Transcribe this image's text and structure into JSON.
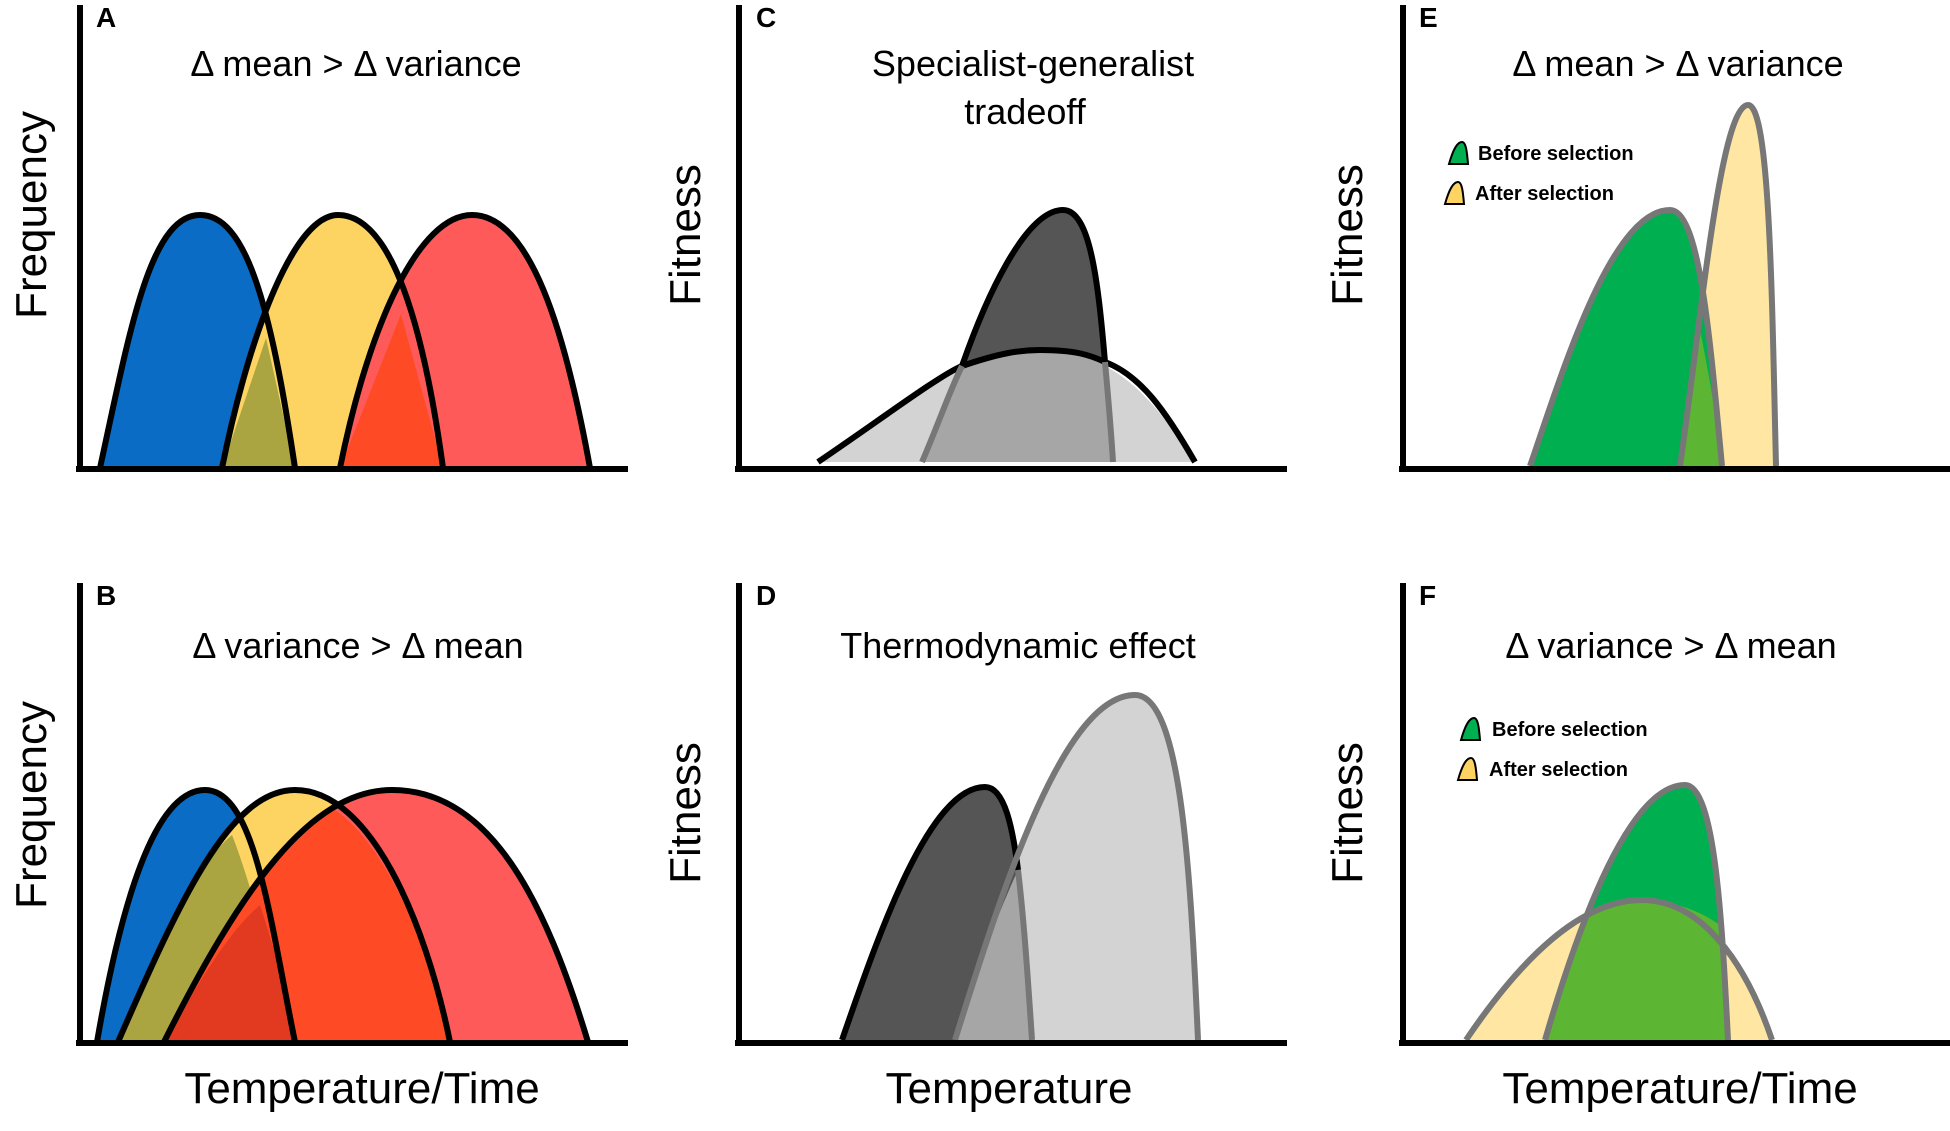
{
  "panels": {
    "A": {
      "letter": "A",
      "title": "Δ mean > Δ variance",
      "ylabel": "Frequency"
    },
    "B": {
      "letter": "B",
      "title": "Δ variance > Δ mean",
      "ylabel": "Frequency"
    },
    "C": {
      "letter": "C",
      "title_line1": "Specialist-generalist",
      "title_line2": "tradeoff",
      "ylabel": "Fitness"
    },
    "D": {
      "letter": "D",
      "title": "Thermodynamic effect",
      "ylabel": "Fitness"
    },
    "E": {
      "letter": "E",
      "title": "Δ mean > Δ variance",
      "ylabel": "Fitness"
    },
    "F": {
      "letter": "F",
      "title": "Δ variance > Δ mean",
      "ylabel": "Fitness"
    }
  },
  "legend": {
    "before": "Before selection",
    "after": "After selection"
  },
  "xlabels": {
    "left": "Temperature/Time",
    "middle": "Temperature",
    "right": "Temperature/Time"
  },
  "colors": {
    "blue": "#0a6cc4",
    "yellow": "#fdd462",
    "red": "#ff5a5a",
    "dark_gray": "#555555",
    "light_gray": "#d3d3d3",
    "mid_gray": "#a6a6a6",
    "green": "#00b050",
    "light_yellow": "#ffe7a3",
    "green_overlap": "#5db534",
    "olive_overlap": "#aaa540",
    "orange_overlap": "#ff4b25",
    "dark_orange_overlap": "#e23a20",
    "outline_gray": "#777777"
  }
}
